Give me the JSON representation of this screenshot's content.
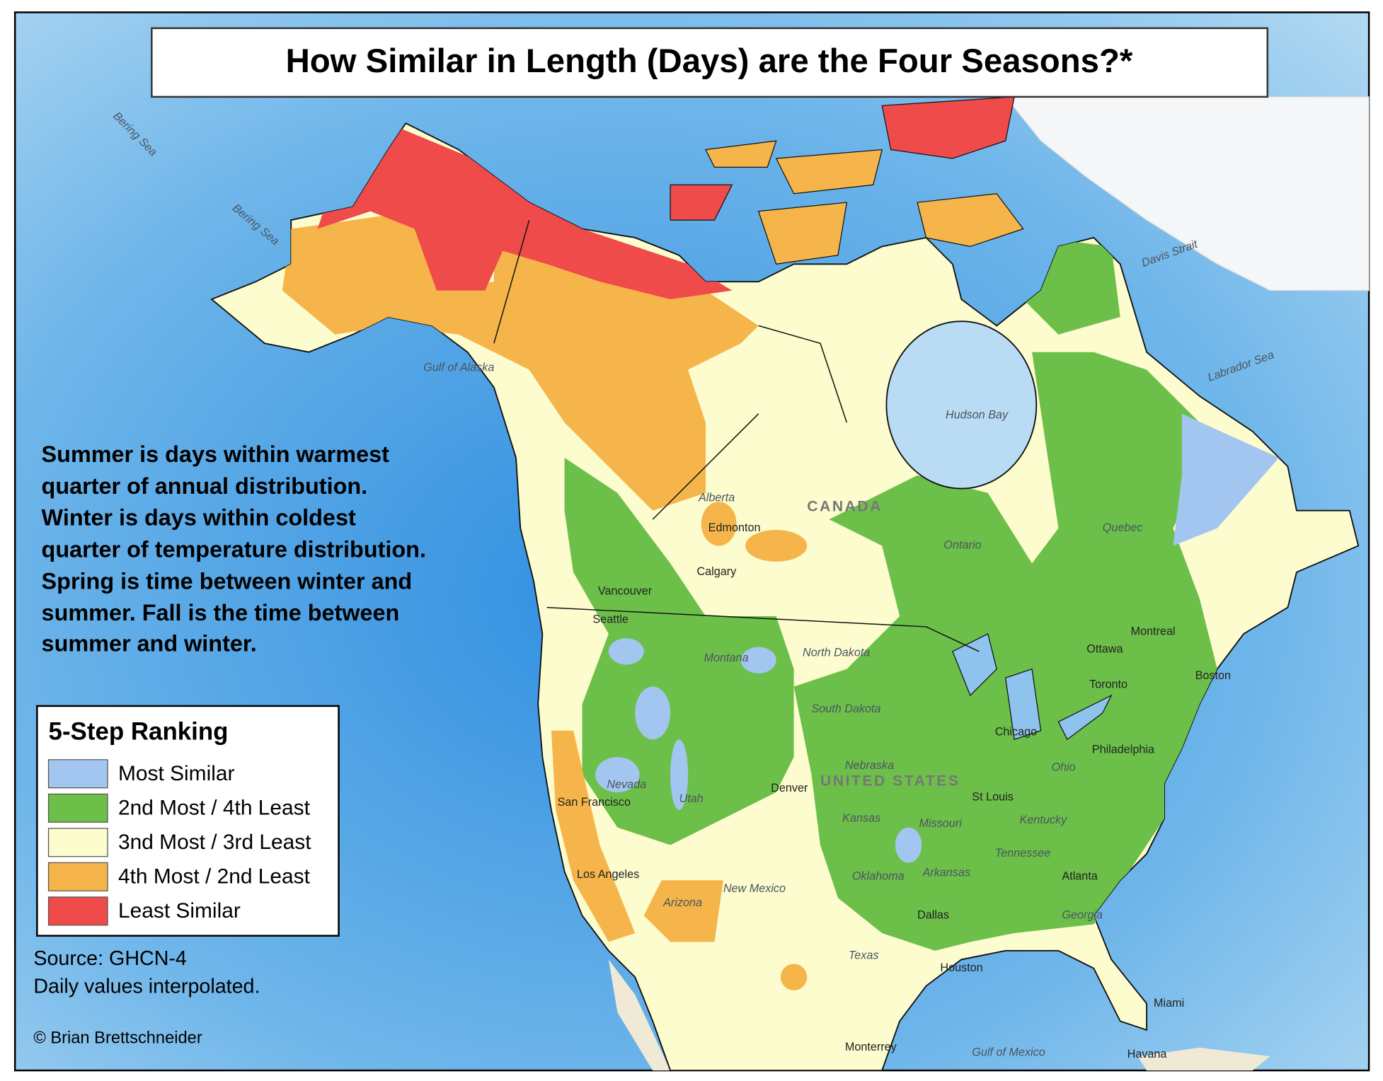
{
  "header": {
    "title": "How Similar in Length (Days) are the Four Seasons?*"
  },
  "description": {
    "lines": [
      "Summer is days within warmest",
      "quarter of annual distribution.",
      "Winter is days within coldest",
      "quarter of temperature distribution.",
      "Spring is time between winter and",
      "summer. Fall is the time between",
      "summer and winter."
    ]
  },
  "legend": {
    "title": "5-Step Ranking",
    "items": [
      {
        "label": "Most Similar",
        "color": "#a3c6f0"
      },
      {
        "label": "2nd Most / 4th Least",
        "color": "#6cc04a"
      },
      {
        "label": "3nd Most / 3rd Least",
        "color": "#fcfcce"
      },
      {
        "label": "4th Most / 2nd Least",
        "color": "#f6b54a"
      },
      {
        "label": "Least Similar",
        "color": "#f04b4b"
      }
    ]
  },
  "source": {
    "lines": [
      "Source: GHCN-4",
      "Daily values interpolated."
    ]
  },
  "credit": "© Brian Brettschneider",
  "map_labels": [
    {
      "text": "Bering Sea"
    },
    {
      "text": "Bering Sea"
    },
    {
      "text": "Gulf of Alaska"
    },
    {
      "text": "Hudson Bay"
    },
    {
      "text": "Labrador Sea"
    },
    {
      "text": "Davis Strait"
    },
    {
      "text": "CANADA"
    },
    {
      "text": "UNITED STATES"
    },
    {
      "text": "Edmonton"
    },
    {
      "text": "Calgary"
    },
    {
      "text": "Vancouver"
    },
    {
      "text": "Seattle"
    },
    {
      "text": "Ottawa"
    },
    {
      "text": "Montreal"
    },
    {
      "text": "Toronto"
    },
    {
      "text": "Boston"
    },
    {
      "text": "Chicago"
    },
    {
      "text": "Philadelphia"
    },
    {
      "text": "St Louis"
    },
    {
      "text": "Denver"
    },
    {
      "text": "Dallas"
    },
    {
      "text": "Houston"
    },
    {
      "text": "Atlanta"
    },
    {
      "text": "Miami"
    },
    {
      "text": "Havana"
    },
    {
      "text": "Los Angeles"
    },
    {
      "text": "San Francisco"
    },
    {
      "text": "Monterrey"
    },
    {
      "text": "Gulf of Mexico"
    },
    {
      "text": "Montana"
    },
    {
      "text": "Nevada"
    },
    {
      "text": "Utah"
    },
    {
      "text": "Kansas"
    },
    {
      "text": "Missouri"
    },
    {
      "text": "Oklahoma"
    },
    {
      "text": "Arkansas"
    },
    {
      "text": "Tennessee"
    },
    {
      "text": "Kentucky"
    },
    {
      "text": "Ohio"
    },
    {
      "text": "Georgia"
    },
    {
      "text": "Texas"
    },
    {
      "text": "New Mexico"
    },
    {
      "text": "Arizona"
    },
    {
      "text": "North Dakota"
    },
    {
      "text": "South Dakota"
    },
    {
      "text": "Nebraska"
    },
    {
      "text": "Ontario"
    },
    {
      "text": "Quebec"
    },
    {
      "text": "Alberta"
    }
  ]
}
